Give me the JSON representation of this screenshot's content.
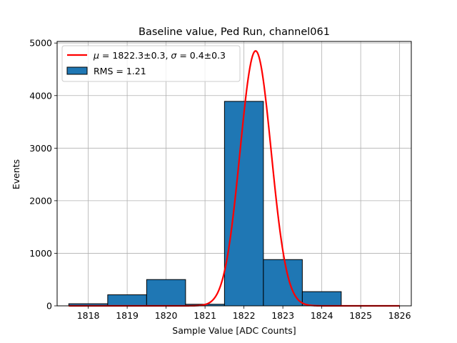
{
  "chart_data": {
    "type": "bar",
    "title": "Baseline value, Ped Run, channel061",
    "xlabel": "Sample Value [ADC Counts]",
    "ylabel": "Events",
    "xlim": [
      1817.2,
      1826.3
    ],
    "ylim": [
      0,
      5030
    ],
    "xticks": [
      1818,
      1819,
      1820,
      1821,
      1822,
      1823,
      1824,
      1825,
      1826
    ],
    "yticks": [
      0,
      1000,
      2000,
      3000,
      4000,
      5000
    ],
    "grid": true,
    "legend_position": "top-left",
    "histogram": {
      "name": "RMS = 1.21",
      "color": "#1f77b4",
      "edgecolor": "#000000",
      "bins": [
        {
          "left": 1817.5,
          "right": 1818.5,
          "count": 40
        },
        {
          "left": 1818.5,
          "right": 1819.5,
          "count": 210
        },
        {
          "left": 1819.5,
          "right": 1820.5,
          "count": 500
        },
        {
          "left": 1820.5,
          "right": 1821.5,
          "count": 30
        },
        {
          "left": 1821.5,
          "right": 1822.5,
          "count": 3890
        },
        {
          "left": 1822.5,
          "right": 1823.5,
          "count": 880
        },
        {
          "left": 1823.5,
          "right": 1824.5,
          "count": 270
        }
      ]
    },
    "fit": {
      "legend_mu": "μ",
      "legend_eq1": " = 1822.3±0.3, ",
      "legend_sigma": "σ",
      "legend_eq2": " = 0.4±0.3",
      "color": "#ff0000",
      "type": "gaussian",
      "mean": 1822.3,
      "sigma": 0.4,
      "amplitude": 4850,
      "x_range": [
        1817.5,
        1826
      ]
    }
  }
}
